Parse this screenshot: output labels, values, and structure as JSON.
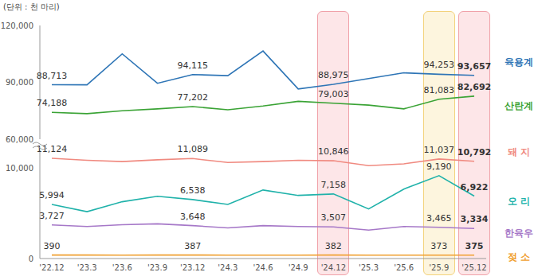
{
  "chart_data": [
    {
      "type": "line",
      "subtitle": "(단위 : 천 마리)",
      "tick_labels": "y",
      "data_labels": true,
      "categories": [
        "'22.12",
        "'23.3",
        "'23.6",
        "'23.9",
        "'23.12",
        "'24.3",
        "'24.6",
        "'24.9",
        "'24.12",
        "'25.3",
        "'25.6",
        "'25.9",
        "'25.12"
      ],
      "ylim": [
        60000,
        120000
      ],
      "yticks": [
        {
          "value": 60000,
          "label": "60,000"
        },
        {
          "value": 90000,
          "label": "90,000"
        },
        {
          "value": 120000,
          "label": "120,000"
        }
      ],
      "series": [
        {
          "name": "육용계",
          "color": "#2e75b6",
          "values": [
            88713,
            88700,
            105000,
            89500,
            94115,
            93500,
            106500,
            86500,
            88975,
            92000,
            95000,
            94253,
            93657
          ],
          "value_labels": [
            "88,713",
            null,
            null,
            null,
            "94,115",
            null,
            null,
            null,
            "88,975",
            null,
            null,
            "94,253",
            "93,657"
          ]
        },
        {
          "name": "산란계",
          "color": "#3aa335",
          "values": [
            74188,
            73500,
            75000,
            76000,
            77202,
            75500,
            77500,
            80000,
            79003,
            78000,
            76000,
            81083,
            82692
          ],
          "value_labels": [
            "74,188",
            null,
            null,
            null,
            "77,202",
            null,
            null,
            null,
            "79,003",
            null,
            null,
            "81,083",
            "82,692"
          ]
        }
      ]
    },
    {
      "type": "line",
      "data_labels": true,
      "categories": [
        "'22.12",
        "'23.3",
        "'23.6",
        "'23.9",
        "'23.12",
        "'24.3",
        "'24.6",
        "'24.9",
        "'24.12",
        "'25.3",
        "'25.6",
        "'25.9",
        "'25.12"
      ],
      "ylim": [
        0,
        12000
      ],
      "yticks": [
        0,
        {
          "value": 10000,
          "label": "10,000"
        }
      ],
      "series": [
        {
          "name": "돼 지",
          "color": "#f08a80",
          "values": [
            11124,
            10900,
            10750,
            10950,
            11089,
            10650,
            10750,
            10900,
            10846,
            10300,
            10500,
            11037,
            10792
          ],
          "value_labels": [
            "11,124",
            null,
            null,
            null,
            "11,089",
            null,
            null,
            null,
            "10,846",
            null,
            null,
            "11,037",
            "10,792"
          ]
        },
        {
          "name": "오 리",
          "color": "#20b2aa",
          "values": [
            5994,
            5200,
            6300,
            6900,
            6538,
            6000,
            7600,
            7000,
            7158,
            5500,
            7700,
            9190,
            6922
          ],
          "value_labels": [
            "5,994",
            null,
            null,
            null,
            "6,538",
            null,
            null,
            null,
            "7,158",
            null,
            null,
            "9,190",
            "6,922"
          ]
        },
        {
          "name": "한육우",
          "color": "#a678c8",
          "values": [
            3727,
            3550,
            3750,
            3850,
            3648,
            3400,
            3650,
            3550,
            3507,
            3150,
            3550,
            3465,
            3334
          ],
          "value_labels": [
            "3,727",
            null,
            null,
            null,
            "3,648",
            null,
            null,
            null,
            "3,507",
            null,
            null,
            "3,465",
            "3,334"
          ]
        },
        {
          "name": "젖 소",
          "color": "#f0a030",
          "values": [
            390,
            385,
            370,
            390,
            387,
            380,
            375,
            380,
            382,
            375,
            370,
            373,
            375
          ],
          "value_labels": [
            "390",
            null,
            null,
            null,
            "387",
            null,
            null,
            null,
            "382",
            null,
            null,
            "373",
            "375"
          ]
        }
      ]
    }
  ]
}
